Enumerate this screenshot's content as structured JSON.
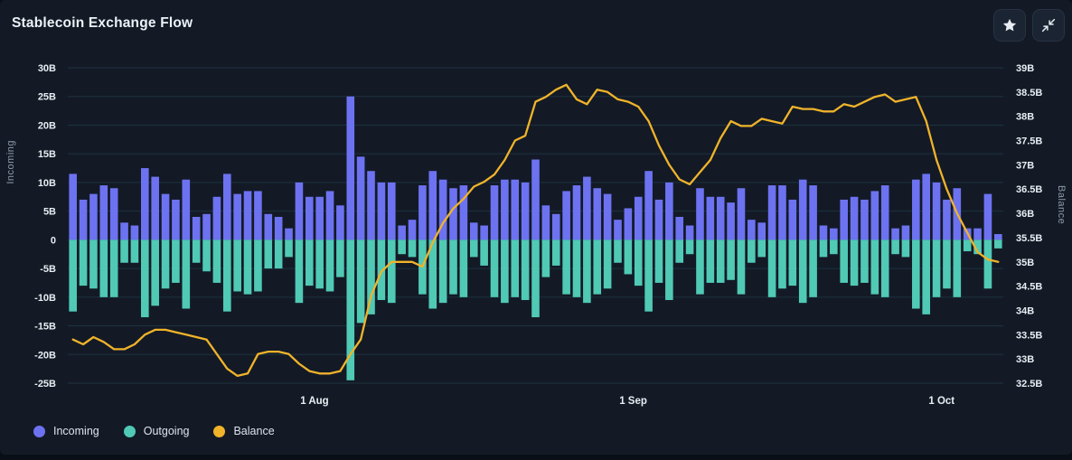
{
  "header": {
    "title": "Stablecoin Exchange Flow"
  },
  "toolbar": {
    "favorite_button": {
      "icon": "star-icon"
    },
    "collapse_button": {
      "icon": "collapse-icon"
    }
  },
  "colors": {
    "background": "#131a26",
    "page_background": "#0a0f17",
    "grid": "#1d323f",
    "tick_text": "#e8edf2",
    "axis_title_text": "#8d99a9",
    "incoming": "#6d72f1",
    "outgoing": "#50c9b5",
    "balance": "#f0b32a"
  },
  "legend": [
    {
      "label": "Incoming",
      "color": "#6d72f1"
    },
    {
      "label": "Outgoing",
      "color": "#50c9b5"
    },
    {
      "label": "Balance",
      "color": "#f0b32a"
    }
  ],
  "chart_data": {
    "type": "bar",
    "title": "Stablecoin Exchange Flow",
    "left_axis": {
      "label": "Incoming",
      "range": [
        -25,
        30
      ],
      "tick_step": 5,
      "ticks": [
        {
          "label": "30B",
          "value": 30
        },
        {
          "label": "25B",
          "value": 25
        },
        {
          "label": "20B",
          "value": 20
        },
        {
          "label": "15B",
          "value": 15
        },
        {
          "label": "10B",
          "value": 10
        },
        {
          "label": "5B",
          "value": 5
        },
        {
          "label": "0",
          "value": 0
        },
        {
          "label": "-5B",
          "value": -5
        },
        {
          "label": "-10B",
          "value": -10
        },
        {
          "label": "-15B",
          "value": -15
        },
        {
          "label": "-20B",
          "value": -20
        },
        {
          "label": "-25B",
          "value": -25
        }
      ]
    },
    "right_axis": {
      "label": "Balance",
      "range": [
        32.5,
        39
      ],
      "tick_step": 0.5,
      "ticks": [
        {
          "label": "39B",
          "value": 39
        },
        {
          "label": "38.5B",
          "value": 38.5
        },
        {
          "label": "38B",
          "value": 38
        },
        {
          "label": "37.5B",
          "value": 37.5
        },
        {
          "label": "37B",
          "value": 37
        },
        {
          "label": "36.5B",
          "value": 36.5
        },
        {
          "label": "36B",
          "value": 36
        },
        {
          "label": "35.5B",
          "value": 35.5
        },
        {
          "label": "35B",
          "value": 35
        },
        {
          "label": "34.5B",
          "value": 34.5
        },
        {
          "label": "34B",
          "value": 34
        },
        {
          "label": "33.5B",
          "value": 33.5
        },
        {
          "label": "33B",
          "value": 33
        },
        {
          "label": "32.5B",
          "value": 32.5
        }
      ]
    },
    "x_ticks": [
      {
        "label": "1 Aug",
        "position_index": 23.5
      },
      {
        "label": "1 Sep",
        "position_index": 54.5
      },
      {
        "label": "1 Oct",
        "position_index": 84.5
      }
    ],
    "grid": true,
    "legend_position": "bottom-left",
    "series": [
      {
        "name": "Incoming",
        "type": "bar",
        "axis": "left",
        "color": "#6d72f1",
        "unit": "B",
        "values": [
          11.5,
          7,
          8,
          9.5,
          9,
          3,
          2.5,
          12.5,
          11,
          8,
          7,
          10.5,
          4,
          4.5,
          7.5,
          11.5,
          8,
          8.5,
          8.5,
          4.5,
          4,
          2,
          10,
          7.5,
          7.5,
          8.5,
          6,
          25,
          14.5,
          12,
          10,
          10,
          2.5,
          3.5,
          9.5,
          12,
          10.5,
          9,
          9.5,
          3,
          2.5,
          9.5,
          10.5,
          10.5,
          10,
          14,
          6,
          4.5,
          8.5,
          9.5,
          11,
          9,
          8,
          3.5,
          5.5,
          7.5,
          12,
          7,
          10,
          4,
          2.5,
          9,
          7.5,
          7.5,
          6.5,
          9,
          3.5,
          3,
          9.5,
          9.5,
          7,
          10.5,
          9.5,
          2.5,
          2,
          7,
          7.5,
          7,
          8.5,
          9.5,
          2,
          2.5,
          10.5,
          11.5,
          10,
          7,
          9,
          2,
          2,
          8,
          1
        ]
      },
      {
        "name": "Outgoing",
        "type": "bar",
        "axis": "left",
        "color": "#50c9b5",
        "unit": "B",
        "values": [
          -12.5,
          -8,
          -8.5,
          -10,
          -10,
          -4,
          -4,
          -13.5,
          -11.5,
          -8.5,
          -7.5,
          -12,
          -4,
          -5.5,
          -7.5,
          -12.5,
          -9,
          -9.5,
          -9,
          -5,
          -5,
          -3,
          -11,
          -8,
          -8.5,
          -9,
          -6.5,
          -24.5,
          -14.5,
          -13,
          -10.5,
          -11,
          -2.5,
          -3,
          -9.5,
          -12,
          -11,
          -9.5,
          -10,
          -3,
          -4.5,
          -10,
          -11,
          -10,
          -10.5,
          -13.5,
          -6.5,
          -4.5,
          -9.5,
          -10,
          -11,
          -9.5,
          -8.5,
          -4,
          -6,
          -8,
          -12.5,
          -7.5,
          -10.5,
          -4,
          -2.5,
          -9.5,
          -7.5,
          -7.5,
          -7,
          -9.5,
          -4,
          -3,
          -10,
          -8.5,
          -8,
          -11,
          -10,
          -3,
          -2.5,
          -7.5,
          -8,
          -7.5,
          -9.5,
          -10,
          -2.5,
          -3,
          -12,
          -13,
          -10,
          -8.5,
          -10,
          -2,
          -2.5,
          -8.5,
          -1.5
        ]
      },
      {
        "name": "Balance",
        "type": "line",
        "axis": "right",
        "color": "#f0b32a",
        "unit": "B",
        "values": [
          33.4,
          33.3,
          33.45,
          33.35,
          33.2,
          33.2,
          33.3,
          33.5,
          33.6,
          33.6,
          33.55,
          33.5,
          33.45,
          33.4,
          33.1,
          32.8,
          32.65,
          32.7,
          33.1,
          33.15,
          33.15,
          33.1,
          32.9,
          32.75,
          32.7,
          32.7,
          32.75,
          33.1,
          33.4,
          34.3,
          34.8,
          35.0,
          35.0,
          35.0,
          34.9,
          35.4,
          35.8,
          36.1,
          36.3,
          36.55,
          36.65,
          36.8,
          37.1,
          37.5,
          37.6,
          38.3,
          38.4,
          38.55,
          38.65,
          38.35,
          38.25,
          38.55,
          38.5,
          38.35,
          38.3,
          38.2,
          37.9,
          37.4,
          37.0,
          36.7,
          36.6,
          36.85,
          37.1,
          37.55,
          37.9,
          37.8,
          37.8,
          37.95,
          37.9,
          37.85,
          38.2,
          38.15,
          38.15,
          38.1,
          38.1,
          38.25,
          38.2,
          38.3,
          38.4,
          38.45,
          38.3,
          38.35,
          38.4,
          37.9,
          37.1,
          36.5,
          36.0,
          35.6,
          35.2,
          35.05,
          35.0
        ]
      }
    ]
  }
}
